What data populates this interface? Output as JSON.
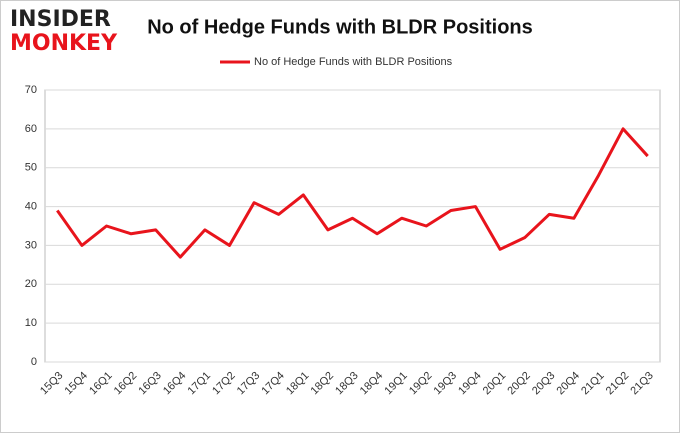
{
  "logo": [
    "INSIDER",
    "MONKEY"
  ],
  "chart_data": {
    "type": "line",
    "title": "No of Hedge Funds with BLDR Positions",
    "categories": [
      "15Q3",
      "15Q4",
      "16Q1",
      "16Q2",
      "16Q3",
      "16Q4",
      "17Q1",
      "17Q2",
      "17Q3",
      "17Q4",
      "18Q1",
      "18Q2",
      "18Q3",
      "18Q4",
      "19Q1",
      "19Q2",
      "19Q3",
      "19Q4",
      "20Q1",
      "20Q2",
      "20Q3",
      "20Q4",
      "21Q1",
      "21Q2",
      "21Q3"
    ],
    "series": [
      {
        "name": "No of Hedge Funds with BLDR Positions",
        "color": "#e8141c",
        "values": [
          39,
          30,
          35,
          33,
          34,
          27,
          34,
          30,
          41,
          38,
          43,
          34,
          37,
          33,
          37,
          35,
          39,
          40,
          29,
          32,
          38,
          37,
          48,
          60,
          53
        ]
      }
    ],
    "ylim": [
      0,
      70
    ],
    "yticks": [
      0,
      10,
      20,
      30,
      40,
      50,
      60,
      70
    ],
    "grid": true,
    "legend": "top"
  }
}
